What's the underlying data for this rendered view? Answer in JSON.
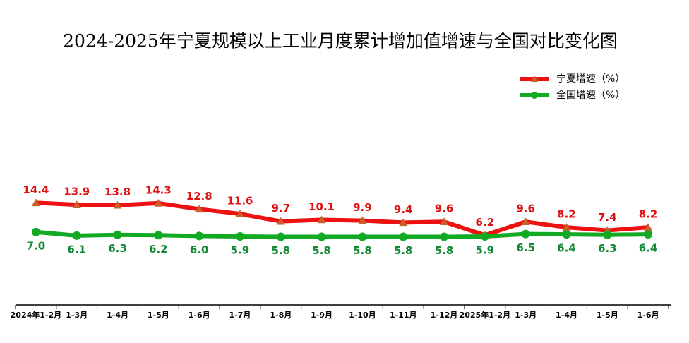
{
  "chart_data": {
    "type": "line",
    "title": "2024-2025年宁夏规模以上工业月度累计增加值增速与全国对比变化图",
    "categories": [
      "2024年1-2月",
      "1-3月",
      "1-4月",
      "1-5月",
      "1-6月",
      "1-7月",
      "1-8月",
      "1-9月",
      "1-10月",
      "1-11月",
      "1-12月",
      "2025年1-2月",
      "1-3月",
      "1-4月",
      "1-5月",
      "1-6月"
    ],
    "series": [
      {
        "name": "宁夏增速（%）",
        "color": "#ee1111",
        "marker": "triangle",
        "marker_color": "#c8602a",
        "label_color": "#e01010",
        "values": [
          14.4,
          13.9,
          13.8,
          14.3,
          12.8,
          11.6,
          9.7,
          10.1,
          9.9,
          9.4,
          9.6,
          6.2,
          9.6,
          8.2,
          7.4,
          8.2
        ]
      },
      {
        "name": "全国增速（%）",
        "color": "#11aa22",
        "marker": "circle",
        "marker_color": "#11aa22",
        "label_color": "#118833",
        "values": [
          7.0,
          6.1,
          6.3,
          6.2,
          6.0,
          5.9,
          5.8,
          5.8,
          5.8,
          5.8,
          5.8,
          5.9,
          6.5,
          6.4,
          6.3,
          6.4
        ],
        "value_labels": [
          "7.0",
          "6.1",
          "6.3",
          "6.2",
          "6.0",
          "5.9",
          "5.8",
          "5.8",
          "5.8",
          "5.8",
          "5.8",
          "5.9",
          "6.5",
          "6.4",
          "6.3",
          "6.4"
        ]
      }
    ]
  }
}
